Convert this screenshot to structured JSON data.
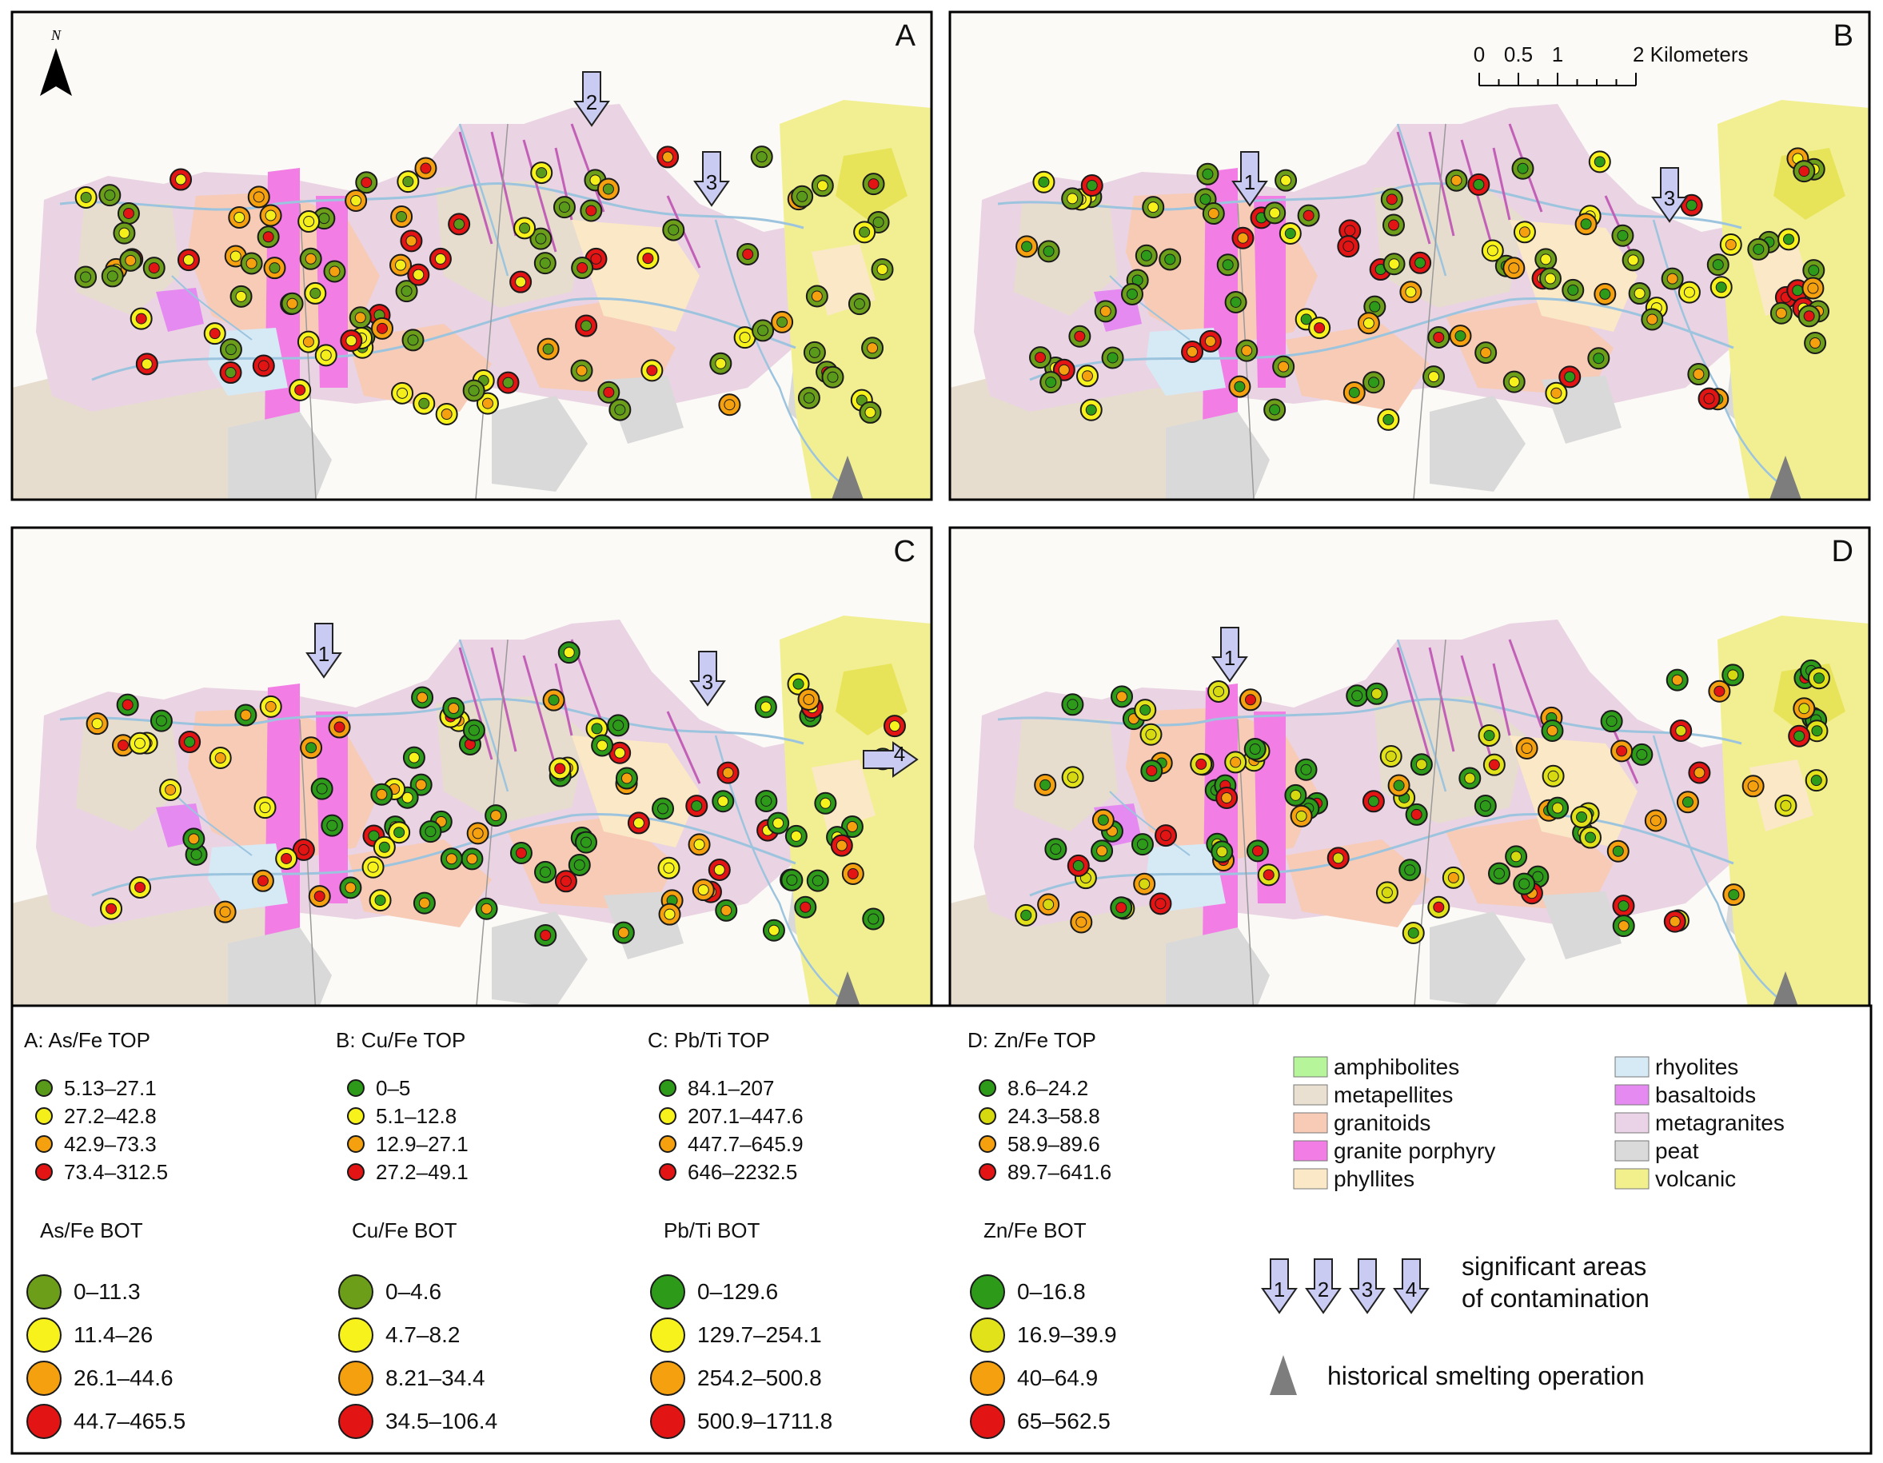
{
  "panels": [
    {
      "id": "A",
      "label": "A",
      "arrows": [
        "2",
        "3"
      ]
    },
    {
      "id": "B",
      "label": "B",
      "arrows": [
        "1",
        "3"
      ]
    },
    {
      "id": "C",
      "label": "C",
      "arrows": [
        "1",
        "3",
        "4"
      ]
    },
    {
      "id": "D",
      "label": "D",
      "arrows": [
        "1"
      ]
    }
  ],
  "north_arrow": {
    "letter": "N"
  },
  "scale_bar": {
    "ticks": [
      "0",
      "0.5",
      "1",
      "2 Kilometers"
    ]
  },
  "legend_groups": [
    {
      "top_title": "A: As/Fe TOP",
      "top_items": [
        {
          "label": "5.13–27.1",
          "color": "#5a9a1a"
        },
        {
          "label": "27.2–42.8",
          "color": "#f4ef1b"
        },
        {
          "label": "42.9–73.3",
          "color": "#f5a00f"
        },
        {
          "label": "73.4–312.5",
          "color": "#e31414"
        }
      ],
      "bot_title": "As/Fe BOT",
      "bot_items": [
        {
          "label": "0–11.3",
          "color": "#6d9e1a"
        },
        {
          "label": "11.4–26",
          "color": "#f7f21c"
        },
        {
          "label": "26.1–44.6",
          "color": "#f5a00f"
        },
        {
          "label": "44.7–465.5",
          "color": "#e31414"
        }
      ]
    },
    {
      "top_title": "B: Cu/Fe TOP",
      "top_items": [
        {
          "label": "0–5",
          "color": "#2e9a1a"
        },
        {
          "label": "5.1–12.8",
          "color": "#f7f21c"
        },
        {
          "label": "12.9–27.1",
          "color": "#f5a00f"
        },
        {
          "label": "27.2–49.1",
          "color": "#e31414"
        }
      ],
      "bot_title": "Cu/Fe BOT",
      "bot_items": [
        {
          "label": "0–4.6",
          "color": "#6d9e1a"
        },
        {
          "label": "4.7–8.2",
          "color": "#f7f21c"
        },
        {
          "label": "8.21–34.4",
          "color": "#f5a00f"
        },
        {
          "label": "34.5–106.4",
          "color": "#e31414"
        }
      ]
    },
    {
      "top_title": "C: Pb/Ti TOP",
      "top_items": [
        {
          "label": "84.1–207",
          "color": "#2e9a1a"
        },
        {
          "label": "207.1–447.6",
          "color": "#f7f21c"
        },
        {
          "label": "447.7–645.9",
          "color": "#f5a00f"
        },
        {
          "label": "646–2232.5",
          "color": "#e31414"
        }
      ],
      "bot_title": "Pb/Ti BOT",
      "bot_items": [
        {
          "label": "0–129.6",
          "color": "#2e9a1a"
        },
        {
          "label": "129.7–254.1",
          "color": "#f7f21c"
        },
        {
          "label": "254.2–500.8",
          "color": "#f5a00f"
        },
        {
          "label": "500.9–1711.8",
          "color": "#e31414"
        }
      ]
    },
    {
      "top_title": "D: Zn/Fe TOP",
      "top_items": [
        {
          "label": "8.6–24.2",
          "color": "#2e9a1a"
        },
        {
          "label": "24.3–58.8",
          "color": "#d6d90f"
        },
        {
          "label": "58.9–89.6",
          "color": "#f5a00f"
        },
        {
          "label": "89.7–641.6",
          "color": "#e31414"
        }
      ],
      "bot_title": "Zn/Fe BOT",
      "bot_items": [
        {
          "label": "0–16.8",
          "color": "#2e9a1a"
        },
        {
          "label": "16.9–39.9",
          "color": "#e2e21a"
        },
        {
          "label": "40–64.9",
          "color": "#f5a00f"
        },
        {
          "label": "65–562.5",
          "color": "#e31414"
        }
      ]
    }
  ],
  "geology_legend": {
    "col1": [
      {
        "label": "amphibolites",
        "color": "#b7f59a"
      },
      {
        "label": "metapellites",
        "color": "#e9e0d2"
      },
      {
        "label": "granitoids",
        "color": "#f7cbb6"
      },
      {
        "label": "granite porphyry",
        "color": "#f27de4"
      },
      {
        "label": "phyllites",
        "color": "#fbe8c6"
      }
    ],
    "col2": [
      {
        "label": "rhyolites",
        "color": "#d6eaf6"
      },
      {
        "label": "basaltoids",
        "color": "#e48af0"
      },
      {
        "label": "metagranites",
        "color": "#ead3e6"
      },
      {
        "label": "peat",
        "color": "#dadada"
      },
      {
        "label": "volcanic",
        "color": "#f2f08c"
      }
    ]
  },
  "arrow_legend": {
    "numbers": [
      "1",
      "2",
      "3",
      "4"
    ],
    "text_line1": "significant areas",
    "text_line2": "of contamination",
    "arrow_fill": "#c9cbf2"
  },
  "smelter_legend": {
    "text": "historical smelting operation",
    "color": "#7d7d7d"
  }
}
